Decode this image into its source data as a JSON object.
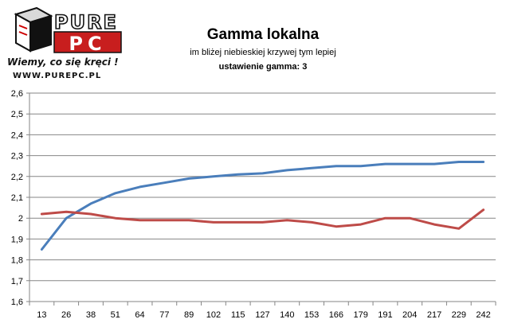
{
  "logo": {
    "brand_top": "PURE",
    "brand_bottom": "PC",
    "slogan": "Wiemy, co się kręci !",
    "url": "WWW.PUREPC.PL"
  },
  "chart_data": {
    "type": "line",
    "title": "Gamma lokalna",
    "subtitle": "im bliżej niebieskiej krzywej tym lepiej",
    "subtitle2": "ustawienie gamma: 3",
    "xlabel": "",
    "ylabel": "",
    "categories": [
      "13",
      "26",
      "38",
      "51",
      "64",
      "77",
      "89",
      "102",
      "115",
      "127",
      "140",
      "153",
      "166",
      "179",
      "191",
      "204",
      "217",
      "229",
      "242"
    ],
    "ylim": [
      1.6,
      2.6
    ],
    "yticks": [
      "1,6",
      "1,7",
      "1,8",
      "1,9",
      "2",
      "2,1",
      "2,2",
      "2,3",
      "2,4",
      "2,5",
      "2,6"
    ],
    "grid": "horizontal",
    "series": [
      {
        "color": "#4a7ebb",
        "values": [
          1.85,
          2.0,
          2.07,
          2.12,
          2.15,
          2.17,
          2.19,
          2.2,
          2.21,
          2.215,
          2.23,
          2.24,
          2.25,
          2.25,
          2.26,
          2.26,
          2.26,
          2.27,
          2.27
        ]
      },
      {
        "color": "#be4b48",
        "values": [
          2.02,
          2.03,
          2.02,
          2.0,
          1.99,
          1.99,
          1.99,
          1.98,
          1.98,
          1.98,
          1.99,
          1.98,
          1.96,
          1.97,
          2.0,
          2.0,
          1.97,
          1.95,
          2.04
        ]
      }
    ]
  }
}
